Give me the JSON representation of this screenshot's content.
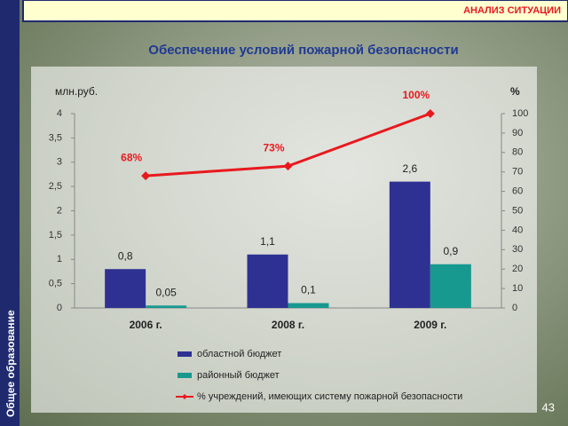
{
  "header": {
    "section": "АНАЛИЗ СИТУАЦИИ"
  },
  "sidebar": {
    "label": "Общее образование"
  },
  "page_number": "43",
  "chart_data": {
    "type": "bar",
    "title": "Обеспечение условий пожарной безопасности",
    "y_label": "млн.руб.",
    "y2_label": "%",
    "categories": [
      "2006 г.",
      "2008 г.",
      "2009 г."
    ],
    "ylim": [
      0,
      4
    ],
    "yticks": [
      0,
      {
        "value": 0.5,
        "label": "0,5"
      },
      1,
      {
        "value": 1.5,
        "label": "1,5"
      },
      2,
      {
        "value": 2.5,
        "label": "2,5"
      },
      3,
      {
        "value": 3.5,
        "label": "3,5"
      },
      4
    ],
    "y2lim": [
      0,
      100
    ],
    "y2ticks": [
      0,
      10,
      20,
      30,
      40,
      50,
      60,
      70,
      80,
      90,
      100
    ],
    "series": [
      {
        "name": "областной бюджет",
        "type": "bar",
        "color": "#2e3192",
        "values": [
          0.8,
          1.1,
          2.6
        ],
        "value_labels": [
          "0,8",
          "1,1",
          "2,6"
        ]
      },
      {
        "name": "районный бюджет",
        "type": "bar",
        "color": "#17998f",
        "values": [
          0.05,
          0.1,
          0.9
        ],
        "value_labels": [
          "0,05",
          "0,1",
          "0,9"
        ]
      },
      {
        "name": "% учреждений, имеющих систему пожарной безопасности",
        "type": "line",
        "axis": "y2",
        "color": "#e8191e",
        "values": [
          68,
          73,
          100
        ],
        "value_labels": [
          "68%",
          "73%",
          "100%"
        ]
      }
    ]
  }
}
